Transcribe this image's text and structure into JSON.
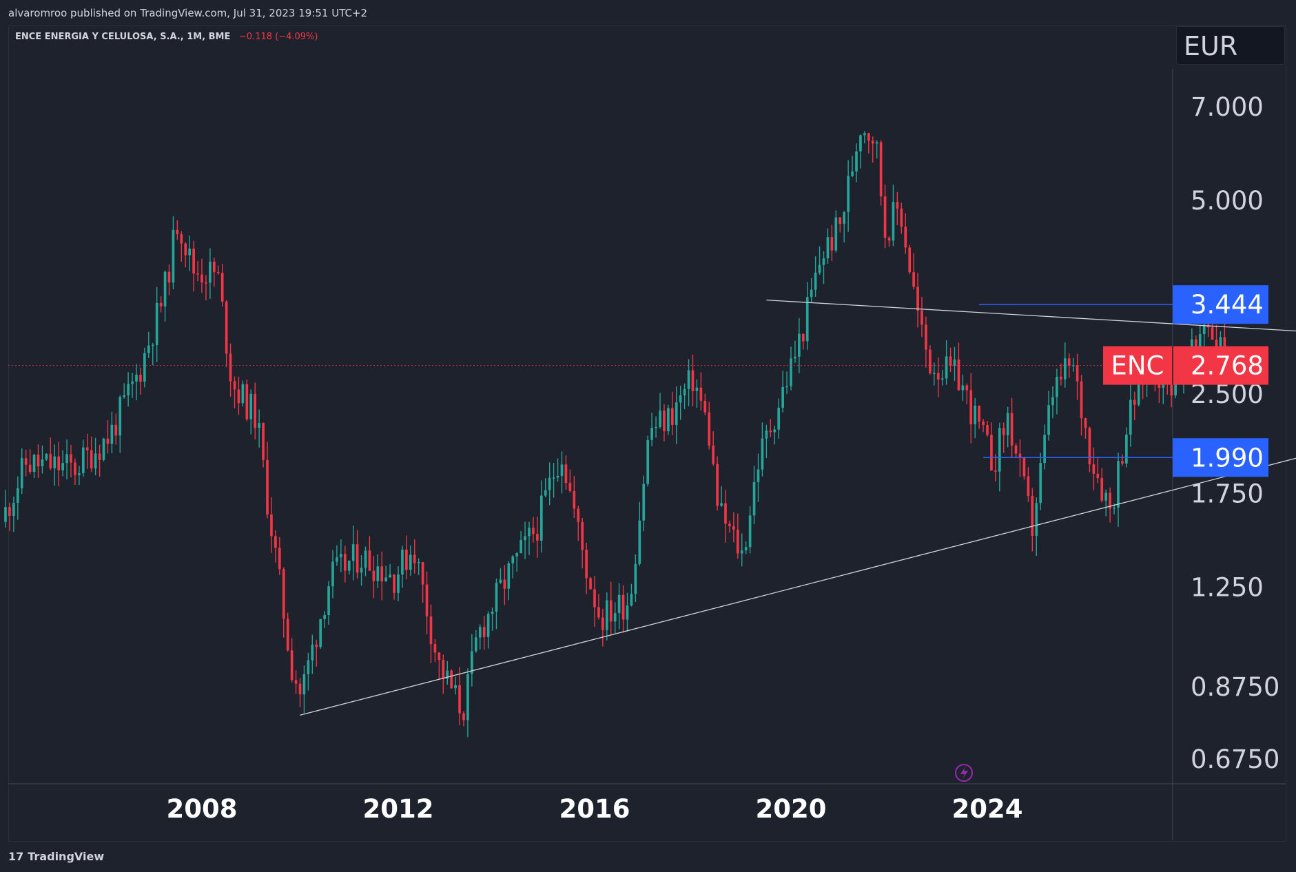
{
  "header": {
    "published": "alvaromroo published on TradingView.com, Jul 31, 2023 19:51 UTC+2"
  },
  "legend": {
    "symbol": "ENCE ENERGIA Y CELULOSA, S.A., 1M, BME",
    "change": "−0.118 (−4.09%)"
  },
  "currency": "EUR",
  "footer": {
    "brand_mark": "17",
    "brand": "TradingView"
  },
  "colors": {
    "background": "#1e222d",
    "up": "#26a69a",
    "down": "#f23645",
    "label_blue": "#2962ff",
    "last_price": "#f23645"
  },
  "chart_data": {
    "type": "candlestick",
    "scale": "log",
    "x_ticks": [
      "2008",
      "2012",
      "2016",
      "2020",
      "2024"
    ],
    "y_ticks": [
      "7.000",
      "5.000",
      "2.500",
      "1.750",
      "1.250",
      "0.8750",
      "0.6750"
    ],
    "y_tick_values": [
      7.0,
      5.0,
      2.5,
      1.75,
      1.25,
      0.875,
      0.675
    ],
    "price_labels": [
      {
        "label": "3.444",
        "value": 3.444
      },
      {
        "label": "1.990",
        "value": 1.99
      }
    ],
    "last_price": {
      "ticker": "ENC",
      "label": "2.768",
      "value": 2.768
    },
    "anchors": [
      [
        2004.0,
        1.58
      ],
      [
        2004.5,
        1.95
      ],
      [
        2005.5,
        1.92
      ],
      [
        2006.2,
        2.15
      ],
      [
        2006.8,
        2.7
      ],
      [
        2007.3,
        3.55
      ],
      [
        2007.6,
        4.7
      ],
      [
        2007.9,
        3.9
      ],
      [
        2008.4,
        3.85
      ],
      [
        2008.7,
        2.6
      ],
      [
        2009.2,
        2.3
      ],
      [
        2009.4,
        1.75
      ],
      [
        2009.9,
        0.95
      ],
      [
        2010.1,
        0.85
      ],
      [
        2010.7,
        1.3
      ],
      [
        2011.3,
        1.4
      ],
      [
        2012.0,
        1.3
      ],
      [
        2012.4,
        1.45
      ],
      [
        2012.9,
        0.95
      ],
      [
        2013.4,
        0.8
      ],
      [
        2013.7,
        1.05
      ],
      [
        2014.3,
        1.3
      ],
      [
        2014.9,
        1.55
      ],
      [
        2015.4,
        2.05
      ],
      [
        2015.9,
        1.35
      ],
      [
        2016.2,
        1.12
      ],
      [
        2016.8,
        1.2
      ],
      [
        2017.2,
        2.2
      ],
      [
        2017.6,
        2.3
      ],
      [
        2018.1,
        2.65
      ],
      [
        2018.4,
        2.2
      ],
      [
        2018.6,
        1.65
      ],
      [
        2019.1,
        1.4
      ],
      [
        2019.4,
        1.95
      ],
      [
        2019.9,
        2.5
      ],
      [
        2020.3,
        3.1
      ],
      [
        2020.7,
        4.1
      ],
      [
        2021.1,
        4.6
      ],
      [
        2021.5,
        6.6
      ],
      [
        2021.8,
        6.3
      ],
      [
        2022.0,
        4.5
      ],
      [
        2022.3,
        4.9
      ],
      [
        2022.7,
        3.2
      ],
      [
        2022.9,
        2.8
      ],
      [
        2023.5,
        2.65
      ],
      [
        2024.2,
        1.95
      ],
      [
        2024.5,
        2.3
      ],
      [
        2025.0,
        1.55
      ],
      [
        2025.4,
        2.5
      ],
      [
        2025.8,
        2.8
      ],
      [
        2026.2,
        2.0
      ],
      [
        2026.6,
        1.65
      ],
      [
        2026.9,
        2.2
      ],
      [
        2027.3,
        2.8
      ],
      [
        2027.8,
        2.6
      ],
      [
        2028.3,
        2.9
      ],
      [
        2028.5,
        3.3
      ],
      [
        2028.8,
        3.0
      ],
      [
        2029.0,
        2.77
      ]
    ],
    "trendlines": [
      {
        "from": [
          2010.0,
          0.79
        ],
        "to": [
          2031.0,
          2.05
        ]
      },
      {
        "from": [
          2019.5,
          3.5
        ],
        "to": [
          2031.0,
          3.11
        ]
      }
    ]
  }
}
